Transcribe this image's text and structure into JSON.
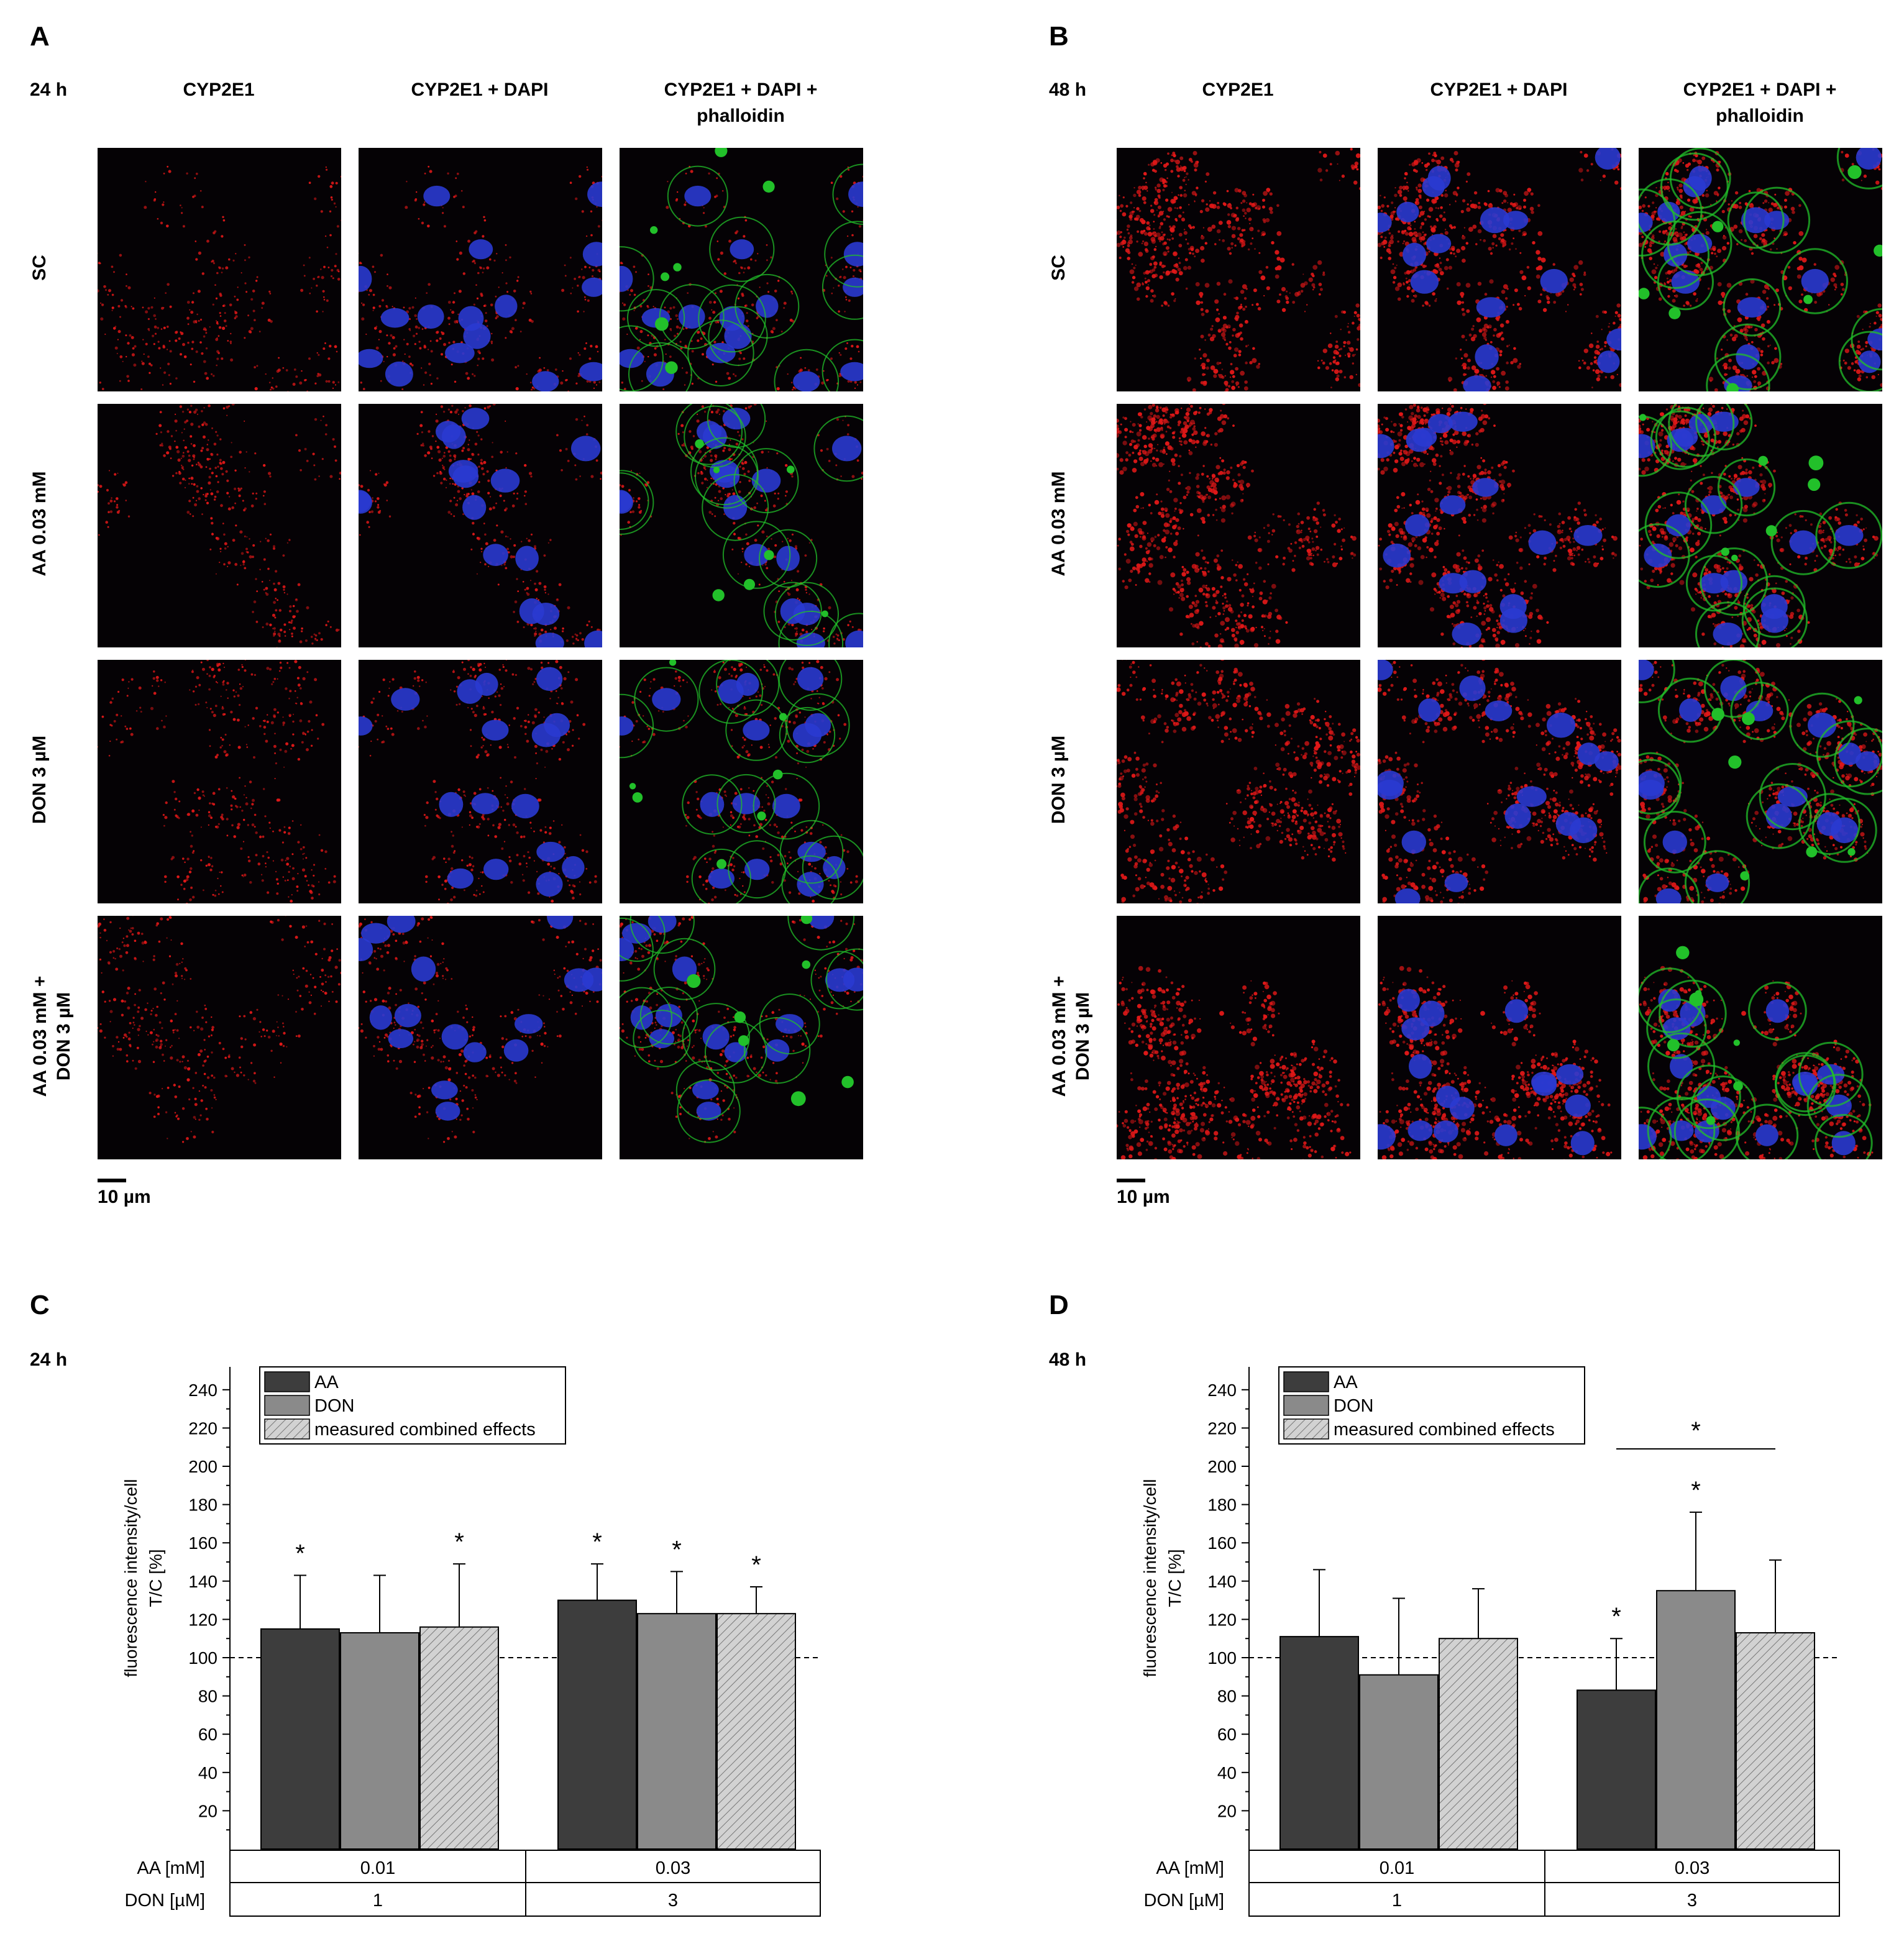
{
  "panels": {
    "A": {
      "letter": "A",
      "time": "24 h"
    },
    "B": {
      "letter": "B",
      "time": "48 h"
    },
    "C": {
      "letter": "C",
      "time": "24 h"
    },
    "D": {
      "letter": "D",
      "time": "48 h"
    }
  },
  "image_columns": [
    "CYP2E1",
    "CYP2E1 + DAPI",
    "CYP2E1 + DAPI +\nphalloidin"
  ],
  "image_rows": [
    "SC",
    "AA 0.03 mM",
    "DON 3 µM",
    "AA 0.03 mM +\nDON 3 µM"
  ],
  "scale_bar_label": "10 µm",
  "colors": {
    "cyp2e1": "#e01818",
    "dapi": "#2a3ad0",
    "phalloidin": "#22c02a",
    "AA": "#3d3d3d",
    "DON": "#8a8a8a",
    "combined": "#d2d2d2"
  },
  "chart_data": [
    {
      "type": "bar",
      "panel": "C",
      "ylabel": "fluorescence intensity/cell\nT/C [%]",
      "ylim": [
        0,
        250
      ],
      "yticks": [
        20,
        40,
        60,
        80,
        100,
        120,
        140,
        160,
        180,
        200,
        220,
        240
      ],
      "reference_line": 100,
      "legend": [
        "AA",
        "DON",
        "measured combined effects"
      ],
      "legend_position": "top-left",
      "row_labels": [
        "AA [mM]",
        "DON [µM]"
      ],
      "groups": [
        {
          "AA": "0.01",
          "DON": "1"
        },
        {
          "AA": "0.03",
          "DON": "3"
        }
      ],
      "series": [
        {
          "name": "AA",
          "values": [
            115,
            130
          ],
          "errors": [
            28,
            19
          ],
          "significant": [
            true,
            true
          ]
        },
        {
          "name": "DON",
          "values": [
            113,
            123
          ],
          "errors": [
            30,
            22
          ],
          "significant": [
            false,
            true
          ]
        },
        {
          "name": "measured combined effects",
          "values": [
            116,
            123
          ],
          "errors": [
            33,
            14
          ],
          "significant": [
            true,
            true
          ]
        }
      ],
      "brackets": []
    },
    {
      "type": "bar",
      "panel": "D",
      "ylabel": "fluorescence intensity/cell\nT/C [%]",
      "ylim": [
        0,
        250
      ],
      "yticks": [
        20,
        40,
        60,
        80,
        100,
        120,
        140,
        160,
        180,
        200,
        220,
        240
      ],
      "reference_line": 100,
      "legend": [
        "AA",
        "DON",
        "measured combined effects"
      ],
      "legend_position": "top-left",
      "row_labels": [
        "AA [mM]",
        "DON [µM]"
      ],
      "groups": [
        {
          "AA": "0.01",
          "DON": "1"
        },
        {
          "AA": "0.03",
          "DON": "3"
        }
      ],
      "series": [
        {
          "name": "AA",
          "values": [
            111,
            83
          ],
          "errors": [
            35,
            27
          ],
          "significant": [
            false,
            true
          ]
        },
        {
          "name": "DON",
          "values": [
            91,
            135
          ],
          "errors": [
            40,
            41
          ],
          "significant": [
            false,
            true
          ]
        },
        {
          "name": "measured combined effects",
          "values": [
            110,
            113
          ],
          "errors": [
            26,
            38
          ],
          "significant": [
            false,
            false
          ]
        }
      ],
      "brackets": [
        {
          "group": 1,
          "from_series": 0,
          "to_series": 2,
          "label": "*"
        }
      ]
    }
  ]
}
